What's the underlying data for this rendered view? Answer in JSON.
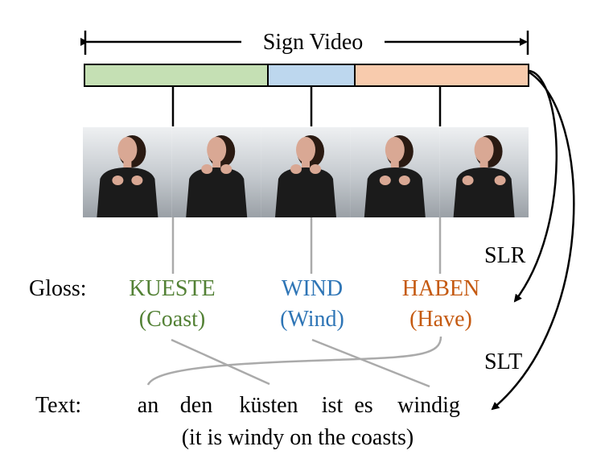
{
  "header": {
    "label": "Sign Video"
  },
  "segments": [
    {
      "name": "segment-kueste",
      "color": "#c5e0b4"
    },
    {
      "name": "segment-wind",
      "color": "#bdd7ee"
    },
    {
      "name": "segment-haben",
      "color": "#f8cbad"
    }
  ],
  "frames": {
    "count": 5,
    "background": "#c9ced3",
    "person_color": "#1b1b1b",
    "skin_color": "#d9a894"
  },
  "gloss": {
    "label": "Gloss:",
    "items": [
      {
        "word": "KUESTE",
        "translation": "(Coast)",
        "color": "#538135"
      },
      {
        "word": "WIND",
        "translation": "(Wind)",
        "color": "#2e75b6"
      },
      {
        "word": "HABEN",
        "translation": "(Have)",
        "color": "#c55a11"
      }
    ]
  },
  "text": {
    "label": "Text:",
    "words": [
      "an",
      "den",
      "küsten",
      "ist",
      "es",
      "windig"
    ],
    "translation": "(it is windy on the coasts)"
  },
  "arrows": {
    "slr": "SLR",
    "slt": "SLT"
  }
}
